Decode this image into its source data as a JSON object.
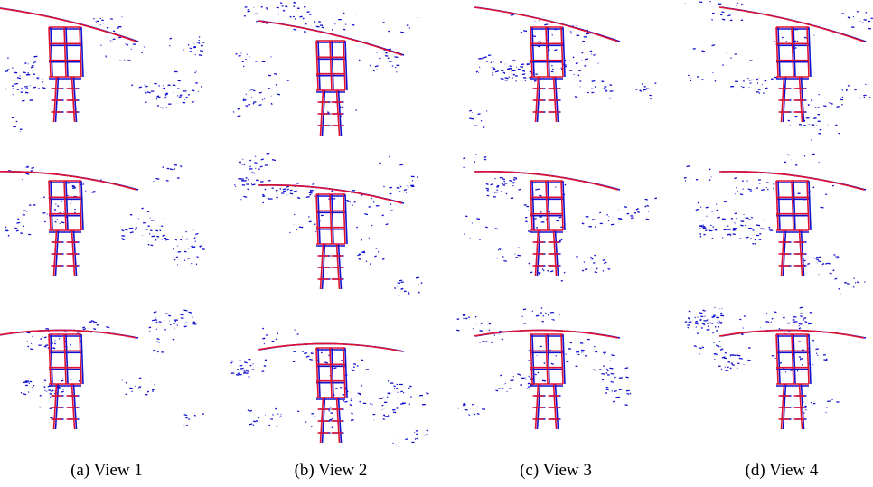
{
  "figure": {
    "captions": [
      "(a) View 1",
      "(b) View 2",
      "(c) View 3",
      "(d) View 4"
    ]
  }
}
